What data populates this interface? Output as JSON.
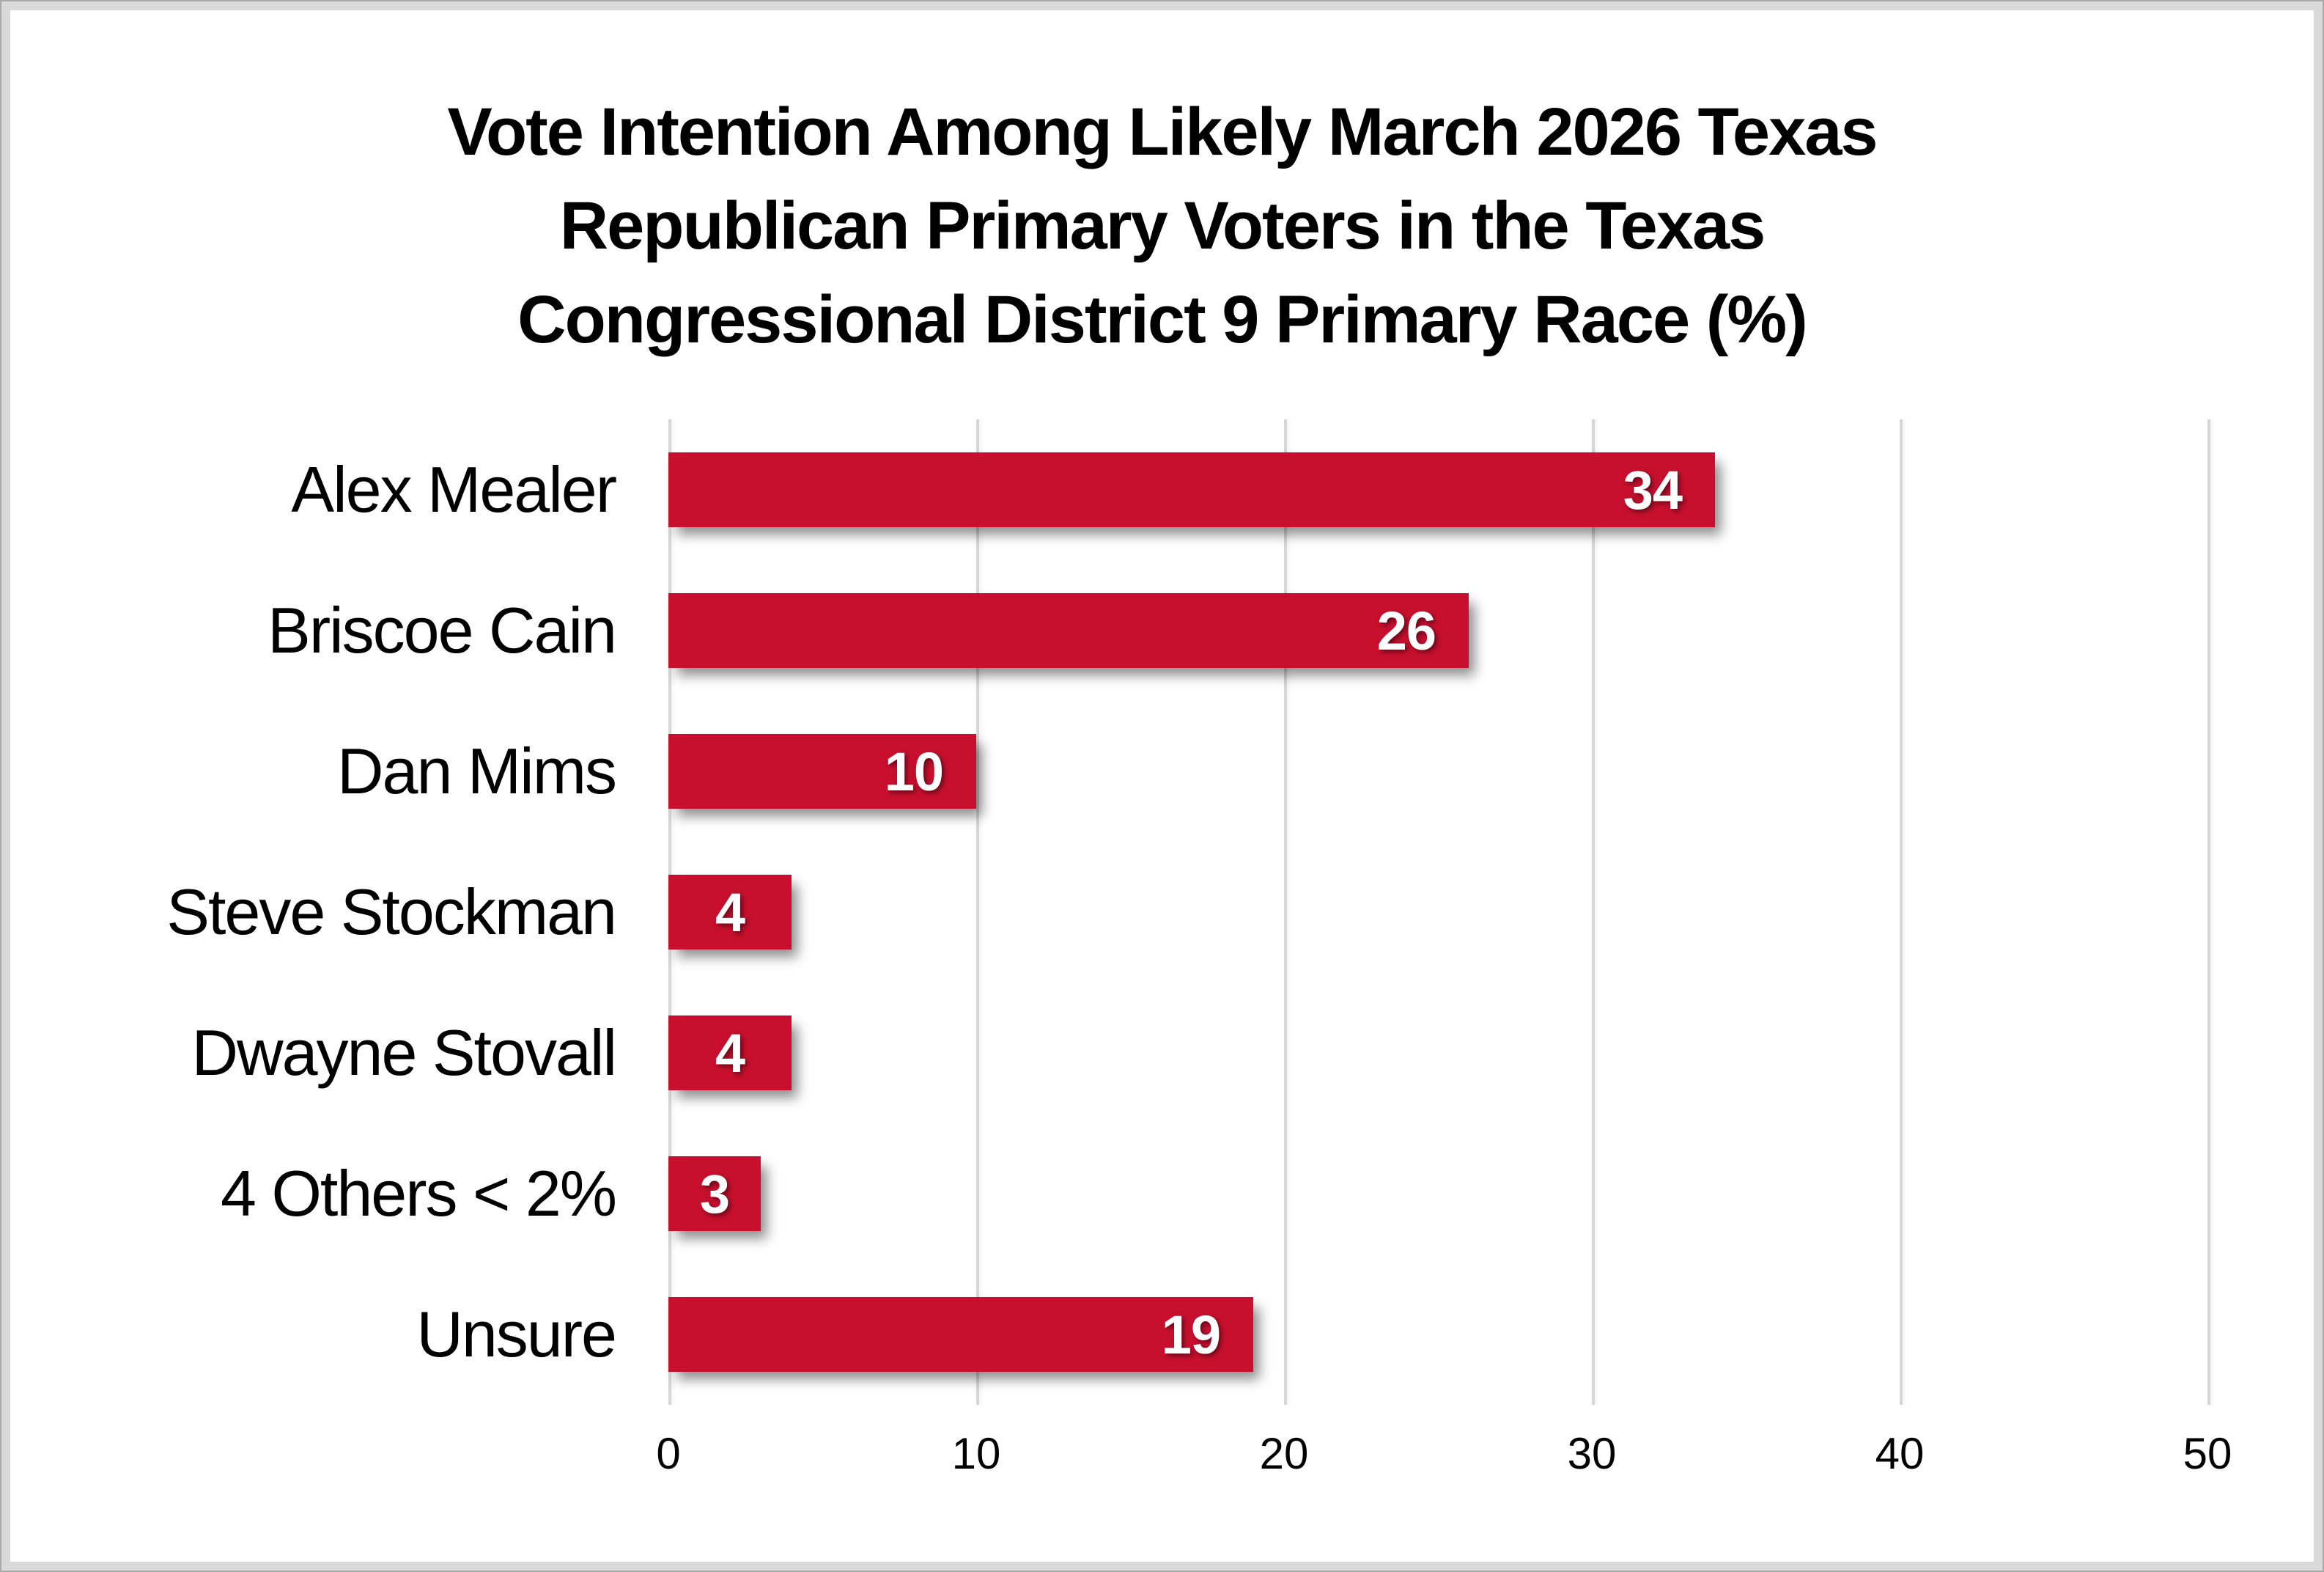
{
  "chart_data": {
    "type": "bar",
    "orientation": "horizontal",
    "title": "Vote Intention Among Likely March 2026 Texas Republican Primary Voters in the Texas Congressional District 9 Primary Race (%)",
    "title_lines": [
      "Vote Intention Among Likely March 2026 Texas",
      "Republican Primary Voters in the Texas",
      "Congressional District 9 Primary Race (%)"
    ],
    "categories": [
      "Alex Mealer",
      "Briscoe Cain",
      "Dan Mims",
      "Steve Stockman",
      "Dwayne Stovall",
      "4 Others < 2%",
      "Unsure"
    ],
    "values": [
      34,
      26,
      10,
      4,
      4,
      3,
      19
    ],
    "value_labels": [
      "34",
      "26",
      "10",
      "4",
      "4",
      "3",
      "19"
    ],
    "xlabel": "",
    "ylabel": "",
    "xlim": [
      0,
      50
    ],
    "x_ticks": [
      0,
      10,
      20,
      30,
      40,
      50
    ],
    "x_tick_labels": [
      "0",
      "10",
      "20",
      "30",
      "40",
      "50"
    ],
    "grid": "vertical-gridlines-only",
    "legend": "none",
    "colors": {
      "bar": "#C8102E",
      "gridline": "#D6D6D6",
      "value_label": "#FFFFFF",
      "text": "#000000",
      "background": "#FFFFFF",
      "frame_border": "#D9D9D9"
    }
  }
}
